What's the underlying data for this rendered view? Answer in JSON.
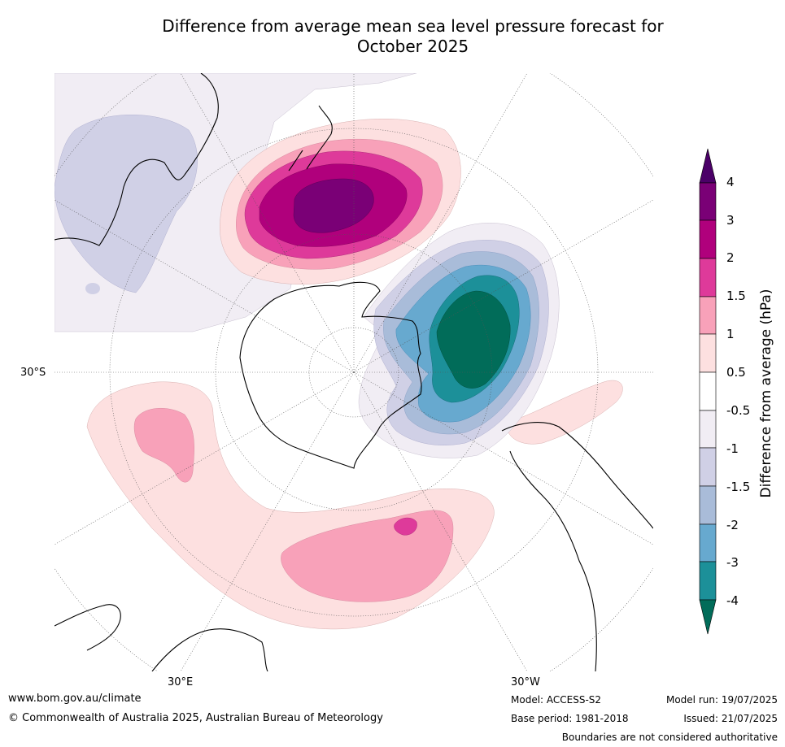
{
  "title_line1": "Difference from average mean sea level pressure forecast for",
  "title_line2": "October 2025",
  "axis_labels": {
    "lat": "30°S",
    "lon_east": "30°E",
    "lon_west": "30°W"
  },
  "colorbar": {
    "title": "Difference from average (hPa)",
    "levels": [
      "4",
      "3",
      "2",
      "1.5",
      "1",
      "0.5",
      "-0.5",
      "-1",
      "-1.5",
      "-2",
      "-3",
      "-4"
    ],
    "colors": {
      "over": "#4b0068",
      "p3_4": "#7a0076",
      "p2_3": "#b0007c",
      "p15_2": "#de3a9a",
      "p1_15": "#f8a1b9",
      "p05_1": "#fde0e0",
      "zero": "#ffffff",
      "n05_1": "#f1edf4",
      "n1_15": "#d0d0e6",
      "n15_2": "#a9bcd9",
      "n2_3": "#67a9cf",
      "n3_4": "#1c9099",
      "under": "#016c59"
    }
  },
  "footer": {
    "url": "www.bom.gov.au/climate",
    "copyright": "© Commonwealth of Australia 2025, Australian Bureau of Meteorology",
    "model": "Model: ACCESS-S2",
    "base_period": "Base period: 1981-2018",
    "model_run": "Model run: 19/07/2025",
    "issued": "Issued: 21/07/2025",
    "disclaimer": "Boundaries are not considered authoritative"
  }
}
